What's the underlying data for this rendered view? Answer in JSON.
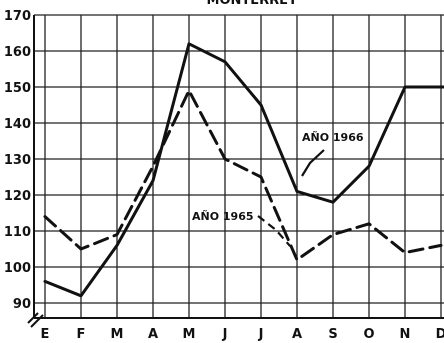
{
  "chart_data": {
    "type": "line",
    "title": "MONTERREY",
    "xlabel": "",
    "ylabel": "",
    "categories": [
      "E",
      "F",
      "M",
      "A",
      "M",
      "J",
      "J",
      "A",
      "S",
      "O",
      "N",
      "D"
    ],
    "ylim": [
      85,
      170
    ],
    "yticks": [
      90,
      100,
      110,
      120,
      130,
      140,
      150,
      160,
      170
    ],
    "grid": true,
    "series": [
      {
        "name": "AÑO 1966",
        "style": "solid",
        "values": [
          96,
          92,
          106,
          124,
          162,
          157,
          145,
          121,
          118,
          128,
          150,
          150
        ]
      },
      {
        "name": "AÑO 1965",
        "style": "dashed",
        "values": [
          114,
          105,
          109,
          128,
          149,
          130,
          125,
          102,
          109,
          112,
          104,
          106
        ]
      }
    ],
    "colors": {
      "line": "#111111",
      "grid": "#222222",
      "background": "#ffffff"
    }
  }
}
